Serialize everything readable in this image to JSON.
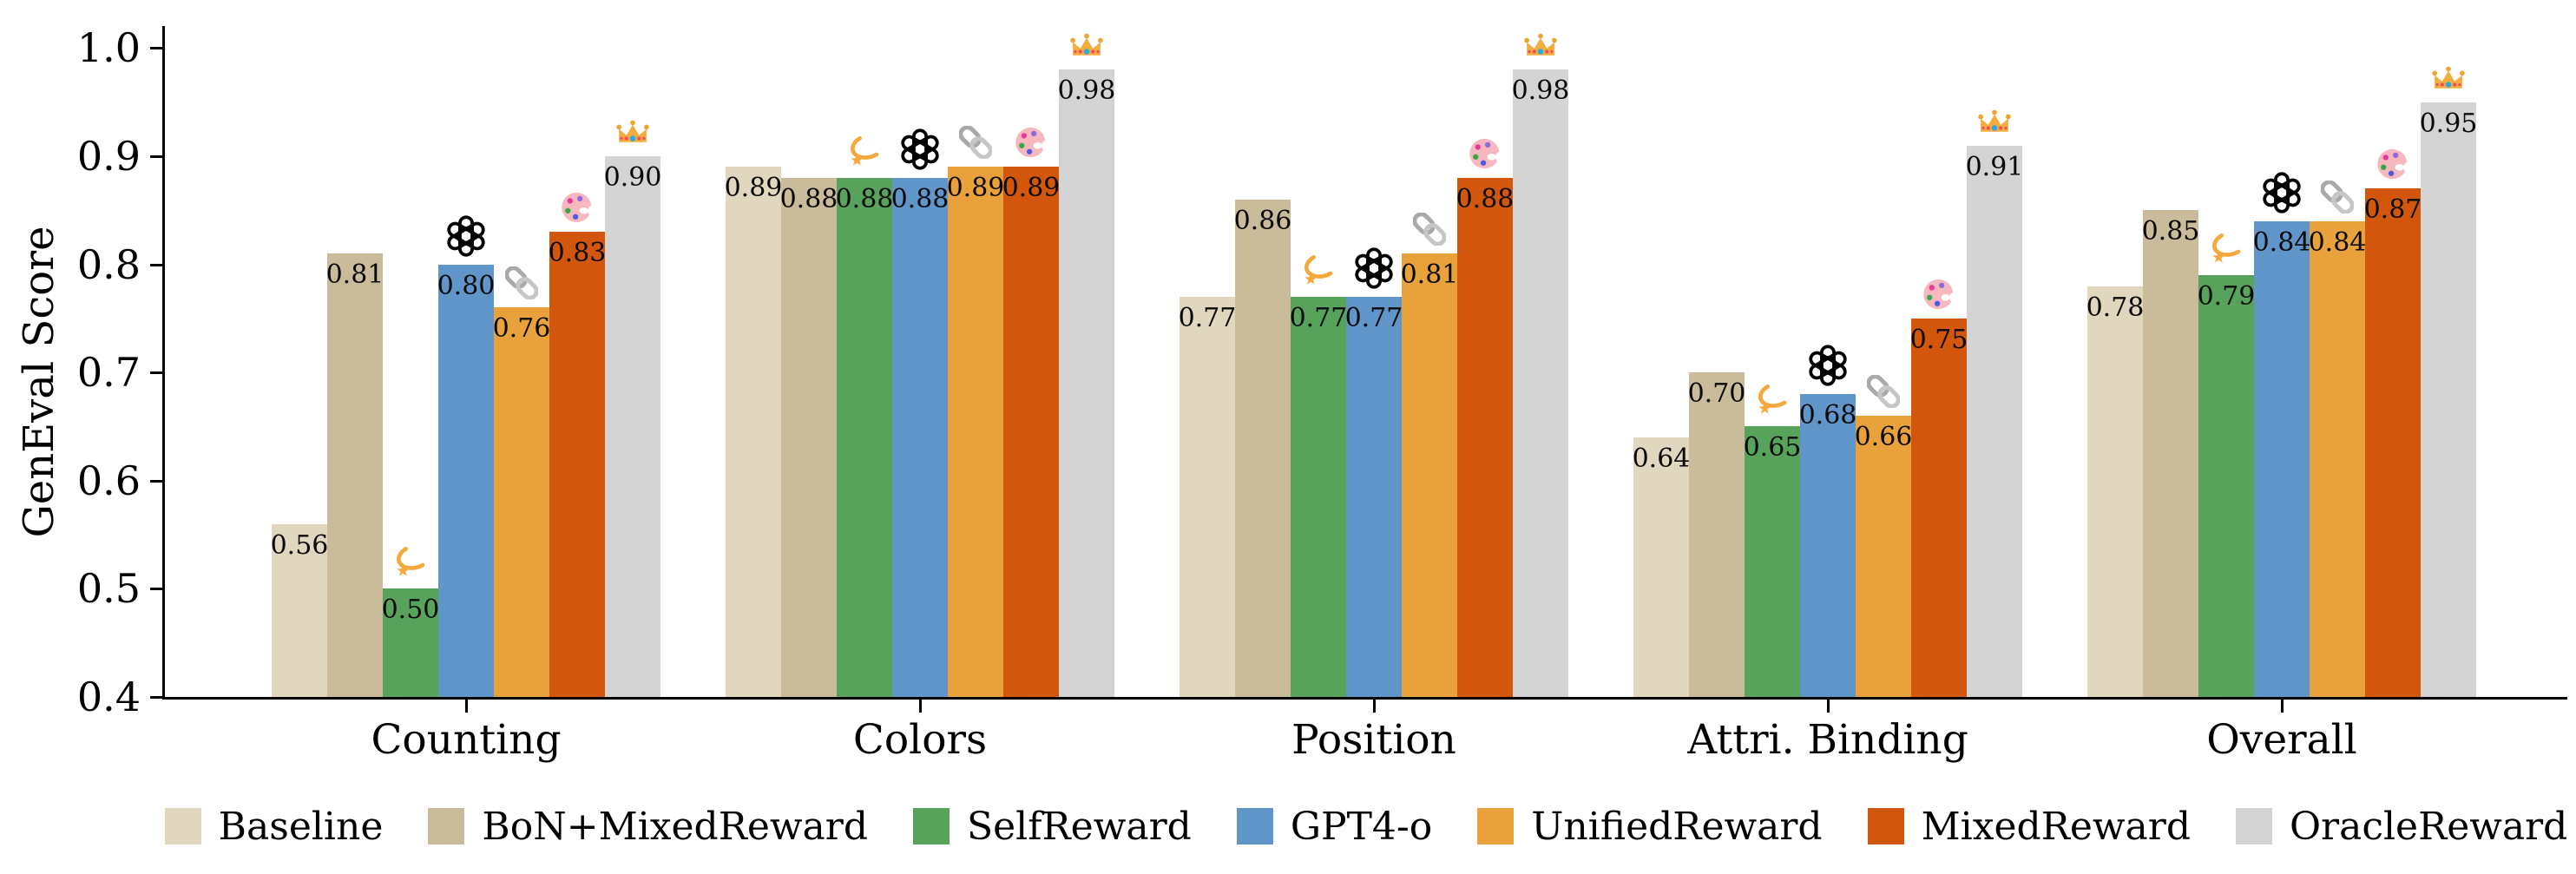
{
  "chart_data": {
    "type": "bar",
    "title": "",
    "ylabel": "GenEval Score",
    "ylim": [
      0.4,
      1.02
    ],
    "yticks": [
      "0.4",
      "0.5",
      "0.6",
      "0.7",
      "0.8",
      "0.9",
      "1.0"
    ],
    "grid": false,
    "legend_position": "bottom",
    "value_label_decimals": 2,
    "categories": [
      "Counting",
      "Colors",
      "Position",
      "Attri. Binding",
      "Overall"
    ],
    "series": [
      {
        "name": "Baseline",
        "color": "#e1d7bf",
        "icon": null,
        "values": [
          0.56,
          0.89,
          0.77,
          0.64,
          0.78
        ]
      },
      {
        "name": "BoN+MixedReward",
        "color": "#cabb9b",
        "icon": null,
        "values": [
          0.81,
          0.88,
          0.86,
          0.7,
          0.85
        ]
      },
      {
        "name": "SelfReward",
        "color": "#57a35b",
        "icon": "dizzy",
        "values": [
          0.5,
          0.88,
          0.77,
          0.65,
          0.79
        ]
      },
      {
        "name": "GPT4-o",
        "color": "#5f95c8",
        "icon": "openai",
        "values": [
          0.8,
          0.88,
          0.77,
          0.68,
          0.84
        ]
      },
      {
        "name": "UnifiedReward",
        "color": "#e9a23b",
        "icon": "link",
        "values": [
          0.76,
          0.89,
          0.81,
          0.66,
          0.84
        ]
      },
      {
        "name": "MixedReward",
        "color": "#d2570d",
        "icon": "palette",
        "values": [
          0.83,
          0.89,
          0.88,
          0.75,
          0.87
        ]
      },
      {
        "name": "OracleReward",
        "color": "#d4d4d4",
        "icon": "crown",
        "values": [
          0.9,
          0.98,
          0.98,
          0.91,
          0.95
        ]
      }
    ],
    "icon_legend": {
      "dizzy": "dizzy-swirl-icon",
      "openai": "openai-logo-icon",
      "link": "chain-link-icon",
      "palette": "artist-palette-icon",
      "crown": "crown-icon"
    },
    "axis_color": "#000000",
    "text_color": "#000000"
  }
}
